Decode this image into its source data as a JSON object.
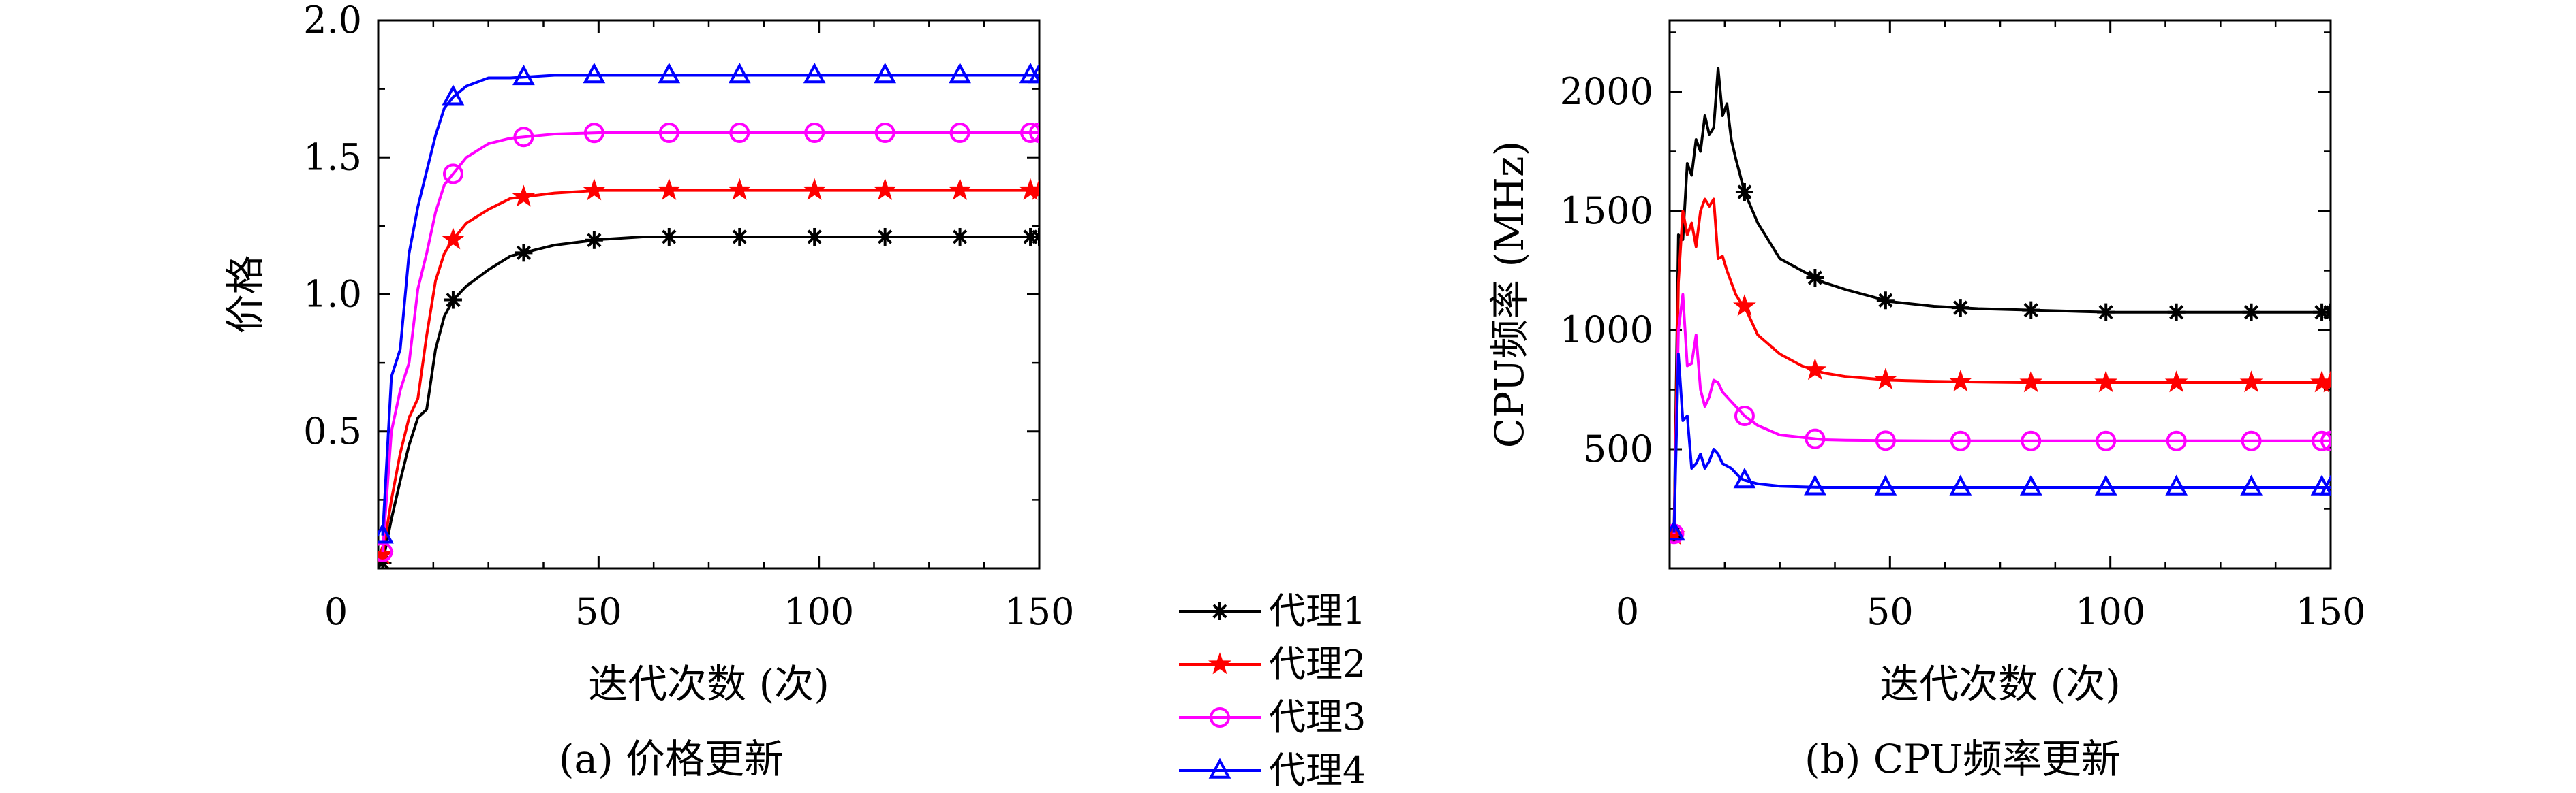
{
  "legend": {
    "entries": [
      {
        "label": "代理1",
        "color": "#000000",
        "marker": "asterisk"
      },
      {
        "label": "代理2",
        "color": "#ff0000",
        "marker": "star"
      },
      {
        "label": "代理3",
        "color": "#ff00ff",
        "marker": "circle"
      },
      {
        "label": "代理4",
        "color": "#0000ff",
        "marker": "triangle"
      }
    ]
  },
  "chart_data": [
    {
      "type": "line",
      "caption": "(a) 价格更新",
      "xlabel": "迭代次数 (次)",
      "ylabel": "价格",
      "xlim": [
        0,
        150
      ],
      "ylim": [
        0,
        2.0
      ],
      "xticks": [
        0,
        50,
        100,
        150
      ],
      "yticks": [
        0.5,
        1.0,
        1.5,
        2.0
      ],
      "ytick_labels": [
        "0.5",
        "1.0",
        "1.5",
        "2.0"
      ],
      "grid": false,
      "series": [
        {
          "name": "代理1",
          "color": "#000000",
          "marker": "asterisk",
          "x": [
            1,
            3,
            5,
            7,
            9,
            11,
            13,
            15,
            17,
            20,
            25,
            30,
            40,
            50,
            60,
            70,
            80,
            90,
            100,
            110,
            120,
            130,
            140,
            150
          ],
          "y": [
            0.02,
            0.18,
            0.32,
            0.45,
            0.55,
            0.58,
            0.8,
            0.92,
            0.98,
            1.03,
            1.09,
            1.14,
            1.18,
            1.2,
            1.21,
            1.21,
            1.21,
            1.21,
            1.21,
            1.21,
            1.21,
            1.21,
            1.21,
            1.21
          ],
          "marker_x": [
            1,
            17,
            33,
            49,
            66,
            82,
            99,
            115,
            132,
            148,
            150
          ]
        },
        {
          "name": "代理2",
          "color": "#ff0000",
          "marker": "star",
          "x": [
            1,
            3,
            5,
            7,
            9,
            11,
            13,
            15,
            17,
            20,
            25,
            30,
            40,
            50,
            60,
            70,
            80,
            90,
            100,
            110,
            120,
            130,
            140,
            150
          ],
          "y": [
            0.05,
            0.25,
            0.42,
            0.55,
            0.62,
            0.85,
            1.05,
            1.15,
            1.2,
            1.26,
            1.31,
            1.35,
            1.37,
            1.38,
            1.38,
            1.38,
            1.38,
            1.38,
            1.38,
            1.38,
            1.38,
            1.38,
            1.38,
            1.38
          ],
          "marker_x": [
            1,
            17,
            33,
            49,
            66,
            82,
            99,
            115,
            132,
            148,
            150
          ]
        },
        {
          "name": "代理3",
          "color": "#ff00ff",
          "marker": "circle",
          "x": [
            1,
            3,
            5,
            7,
            9,
            11,
            13,
            15,
            17,
            20,
            25,
            30,
            40,
            50,
            60,
            70,
            80,
            90,
            100,
            110,
            120,
            130,
            140,
            150
          ],
          "y": [
            0.06,
            0.5,
            0.65,
            0.75,
            1.02,
            1.15,
            1.3,
            1.4,
            1.44,
            1.5,
            1.55,
            1.57,
            1.585,
            1.59,
            1.59,
            1.59,
            1.59,
            1.59,
            1.59,
            1.59,
            1.59,
            1.59,
            1.59,
            1.59
          ],
          "marker_x": [
            1,
            17,
            33,
            49,
            66,
            82,
            99,
            115,
            132,
            148,
            150
          ]
        },
        {
          "name": "代理4",
          "color": "#0000ff",
          "marker": "triangle",
          "x": [
            1,
            3,
            5,
            7,
            9,
            11,
            13,
            15,
            17,
            20,
            25,
            30,
            40,
            50,
            60,
            70,
            80,
            90,
            100,
            110,
            120,
            130,
            140,
            150
          ],
          "y": [
            0.12,
            0.7,
            0.8,
            1.15,
            1.32,
            1.45,
            1.58,
            1.68,
            1.72,
            1.76,
            1.79,
            1.79,
            1.8,
            1.8,
            1.8,
            1.8,
            1.8,
            1.8,
            1.8,
            1.8,
            1.8,
            1.8,
            1.8,
            1.8
          ],
          "marker_x": [
            1,
            17,
            33,
            49,
            66,
            82,
            99,
            115,
            132,
            148,
            150
          ]
        }
      ]
    },
    {
      "type": "line",
      "caption": "(b) CPU频率更新",
      "xlabel": "迭代次数 (次)",
      "ylabel": "CPU频率 (MHz)",
      "xlim": [
        0,
        150
      ],
      "ylim": [
        0,
        2300
      ],
      "xticks": [
        0,
        50,
        100,
        150
      ],
      "yticks": [
        500,
        1000,
        1500,
        2000
      ],
      "ytick_labels": [
        "500",
        "1000",
        "1500",
        "2000"
      ],
      "grid": false,
      "series": [
        {
          "name": "代理1",
          "color": "#000000",
          "marker": "asterisk",
          "x": [
            1,
            2,
            3,
            4,
            5,
            6,
            7,
            8,
            9,
            10,
            11,
            12,
            13,
            14,
            15,
            16,
            17,
            20,
            25,
            30,
            35,
            40,
            50,
            60,
            70,
            80,
            90,
            100,
            110,
            120,
            130,
            140,
            150
          ],
          "y": [
            150,
            1400,
            1380,
            1700,
            1650,
            1800,
            1750,
            1900,
            1820,
            1850,
            2100,
            1900,
            1950,
            1800,
            1720,
            1650,
            1580,
            1450,
            1300,
            1250,
            1200,
            1170,
            1120,
            1100,
            1090,
            1085,
            1080,
            1075,
            1075,
            1075,
            1075,
            1075,
            1075
          ],
          "marker_x": [
            1,
            17,
            33,
            49,
            66,
            82,
            99,
            115,
            132,
            148,
            150
          ]
        },
        {
          "name": "代理2",
          "color": "#ff0000",
          "marker": "star",
          "x": [
            1,
            2,
            3,
            4,
            5,
            6,
            7,
            8,
            9,
            10,
            11,
            12,
            13,
            14,
            15,
            16,
            17,
            20,
            25,
            30,
            35,
            40,
            50,
            60,
            70,
            80,
            90,
            100,
            110,
            120,
            130,
            140,
            150
          ],
          "y": [
            140,
            1200,
            1500,
            1400,
            1450,
            1350,
            1500,
            1550,
            1520,
            1550,
            1300,
            1310,
            1250,
            1200,
            1150,
            1120,
            1100,
            980,
            900,
            850,
            820,
            805,
            790,
            785,
            782,
            780,
            780,
            780,
            780,
            780,
            780,
            780,
            780
          ],
          "marker_x": [
            1,
            17,
            33,
            49,
            66,
            82,
            99,
            115,
            132,
            148,
            150
          ]
        },
        {
          "name": "代理3",
          "color": "#ff00ff",
          "marker": "circle",
          "x": [
            1,
            2,
            3,
            4,
            5,
            6,
            7,
            8,
            9,
            10,
            11,
            12,
            13,
            14,
            15,
            16,
            17,
            20,
            25,
            30,
            35,
            40,
            50,
            60,
            70,
            80,
            90,
            100,
            110,
            120,
            130,
            140,
            150
          ],
          "y": [
            145,
            1000,
            1150,
            850,
            860,
            980,
            750,
            680,
            720,
            790,
            780,
            740,
            720,
            700,
            680,
            660,
            640,
            600,
            560,
            550,
            540,
            538,
            536,
            535,
            535,
            535,
            535,
            535,
            535,
            535,
            535,
            535,
            535
          ],
          "marker_x": [
            1,
            17,
            33,
            49,
            66,
            82,
            99,
            115,
            132,
            148,
            150
          ]
        },
        {
          "name": "代理4",
          "color": "#0000ff",
          "marker": "triangle",
          "x": [
            1,
            2,
            3,
            4,
            5,
            6,
            7,
            8,
            9,
            10,
            11,
            12,
            13,
            14,
            15,
            16,
            17,
            20,
            25,
            30,
            35,
            40,
            50,
            60,
            70,
            80,
            90,
            100,
            110,
            120,
            130,
            140,
            150
          ],
          "y": [
            150,
            900,
            620,
            640,
            420,
            440,
            480,
            420,
            450,
            500,
            480,
            440,
            430,
            420,
            400,
            380,
            370,
            355,
            345,
            342,
            340,
            340,
            340,
            340,
            340,
            340,
            340,
            340,
            340,
            340,
            340,
            340,
            340
          ],
          "marker_x": [
            1,
            17,
            33,
            49,
            66,
            82,
            99,
            115,
            132,
            148,
            150
          ]
        }
      ]
    }
  ]
}
